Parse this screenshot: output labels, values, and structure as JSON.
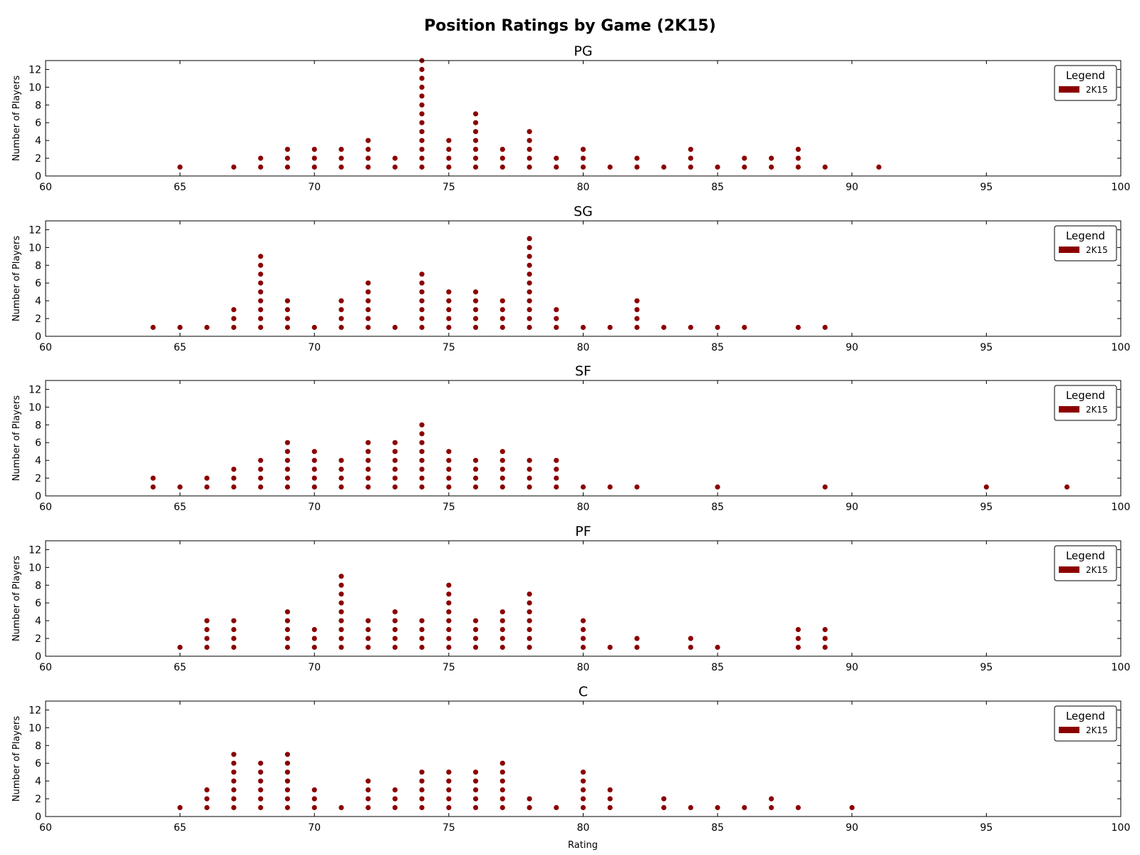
{
  "chart_data": {
    "type": "scatter",
    "title": "Position Ratings by Game (2K15)",
    "xlabel": "Rating",
    "ylabel": "Number of Players",
    "xlim": [
      60,
      100
    ],
    "ylim": [
      0,
      13
    ],
    "xticks": [
      60,
      65,
      70,
      75,
      80,
      85,
      90,
      95,
      100
    ],
    "yticks": [
      0,
      2,
      4,
      6,
      8,
      10,
      12
    ],
    "grid": false,
    "legend": {
      "title": "Legend",
      "label": "2K15",
      "placement": "top-right"
    },
    "marker_color": "#8b0000",
    "panels": [
      {
        "name": "PG",
        "counts": [
          [
            65,
            1
          ],
          [
            67,
            1
          ],
          [
            68,
            2
          ],
          [
            69,
            3
          ],
          [
            70,
            3
          ],
          [
            71,
            3
          ],
          [
            72,
            4
          ],
          [
            73,
            2
          ],
          [
            74,
            13
          ],
          [
            75,
            4
          ],
          [
            76,
            7
          ],
          [
            77,
            3
          ],
          [
            78,
            5
          ],
          [
            79,
            2
          ],
          [
            80,
            3
          ],
          [
            81,
            1
          ],
          [
            82,
            2
          ],
          [
            83,
            1
          ],
          [
            84,
            3
          ],
          [
            85,
            1
          ],
          [
            86,
            2
          ],
          [
            87,
            2
          ],
          [
            88,
            3
          ],
          [
            89,
            1
          ],
          [
            91,
            1
          ]
        ]
      },
      {
        "name": "SG",
        "counts": [
          [
            64,
            1
          ],
          [
            65,
            1
          ],
          [
            66,
            1
          ],
          [
            67,
            3
          ],
          [
            68,
            9
          ],
          [
            69,
            4
          ],
          [
            70,
            1
          ],
          [
            71,
            4
          ],
          [
            72,
            6
          ],
          [
            73,
            1
          ],
          [
            74,
            7
          ],
          [
            75,
            5
          ],
          [
            76,
            5
          ],
          [
            77,
            4
          ],
          [
            78,
            11
          ],
          [
            79,
            3
          ],
          [
            80,
            1
          ],
          [
            81,
            1
          ],
          [
            82,
            4
          ],
          [
            83,
            1
          ],
          [
            84,
            1
          ],
          [
            85,
            1
          ],
          [
            86,
            1
          ],
          [
            88,
            1
          ],
          [
            89,
            1
          ]
        ]
      },
      {
        "name": "SF",
        "counts": [
          [
            64,
            2
          ],
          [
            65,
            1
          ],
          [
            66,
            2
          ],
          [
            67,
            3
          ],
          [
            68,
            4
          ],
          [
            69,
            6
          ],
          [
            70,
            5
          ],
          [
            71,
            4
          ],
          [
            72,
            6
          ],
          [
            73,
            6
          ],
          [
            74,
            8
          ],
          [
            75,
            5
          ],
          [
            76,
            4
          ],
          [
            77,
            5
          ],
          [
            78,
            4
          ],
          [
            79,
            4
          ],
          [
            80,
            1
          ],
          [
            81,
            1
          ],
          [
            82,
            1
          ],
          [
            85,
            1
          ],
          [
            89,
            1
          ],
          [
            95,
            1
          ],
          [
            98,
            1
          ]
        ]
      },
      {
        "name": "PF",
        "counts": [
          [
            65,
            1
          ],
          [
            66,
            4
          ],
          [
            67,
            4
          ],
          [
            69,
            5
          ],
          [
            70,
            3
          ],
          [
            71,
            9
          ],
          [
            72,
            4
          ],
          [
            73,
            5
          ],
          [
            74,
            4
          ],
          [
            75,
            8
          ],
          [
            76,
            4
          ],
          [
            77,
            5
          ],
          [
            78,
            7
          ],
          [
            80,
            4
          ],
          [
            81,
            1
          ],
          [
            82,
            2
          ],
          [
            84,
            2
          ],
          [
            85,
            1
          ],
          [
            88,
            3
          ],
          [
            89,
            3
          ]
        ]
      },
      {
        "name": "C",
        "counts": [
          [
            65,
            1
          ],
          [
            66,
            3
          ],
          [
            67,
            7
          ],
          [
            68,
            6
          ],
          [
            69,
            7
          ],
          [
            70,
            3
          ],
          [
            71,
            1
          ],
          [
            72,
            4
          ],
          [
            73,
            3
          ],
          [
            74,
            5
          ],
          [
            75,
            5
          ],
          [
            76,
            5
          ],
          [
            77,
            6
          ],
          [
            78,
            2
          ],
          [
            79,
            1
          ],
          [
            80,
            5
          ],
          [
            81,
            3
          ],
          [
            83,
            2
          ],
          [
            84,
            1
          ],
          [
            85,
            1
          ],
          [
            86,
            1
          ],
          [
            87,
            2
          ],
          [
            88,
            1
          ],
          [
            90,
            1
          ]
        ]
      }
    ]
  }
}
